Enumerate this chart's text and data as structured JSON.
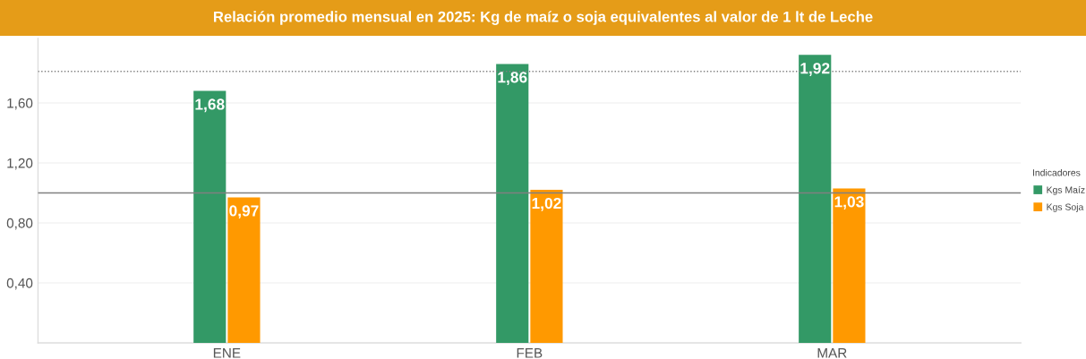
{
  "chart_data": {
    "type": "bar",
    "title": "Relación promedio mensual en 2025: Kg de maíz o soja equivalentes al valor de 1 lt de Leche",
    "categories": [
      "ENE",
      "FEB",
      "MAR"
    ],
    "series": [
      {
        "name": "Kgs Maíz",
        "color": "#339966",
        "values": [
          1.68,
          1.86,
          1.92
        ],
        "value_labels": [
          "1,68",
          "1,86",
          "1,92"
        ]
      },
      {
        "name": "Kgs Soja",
        "color": "#ff9900",
        "values": [
          0.97,
          1.02,
          1.03
        ],
        "value_labels": [
          "0,97",
          "1,02",
          "1,03"
        ]
      }
    ],
    "legend_title": "Indicadores",
    "legend": "right",
    "ylim": [
      0,
      2.03
    ],
    "yticks": [
      {
        "value": 0.4,
        "label": "0,40"
      },
      {
        "value": 0.8,
        "label": "0,80"
      },
      {
        "value": 1.2,
        "label": "1,20"
      },
      {
        "value": 1.6,
        "label": "1,60"
      }
    ],
    "grid": "y",
    "ref_lines": [
      {
        "axis": "y",
        "value": 1.0,
        "line_style": "solid",
        "color": "#808080"
      },
      {
        "axis": "y",
        "value": 1.81,
        "line_style": "dotted",
        "color": "#808080"
      }
    ]
  }
}
